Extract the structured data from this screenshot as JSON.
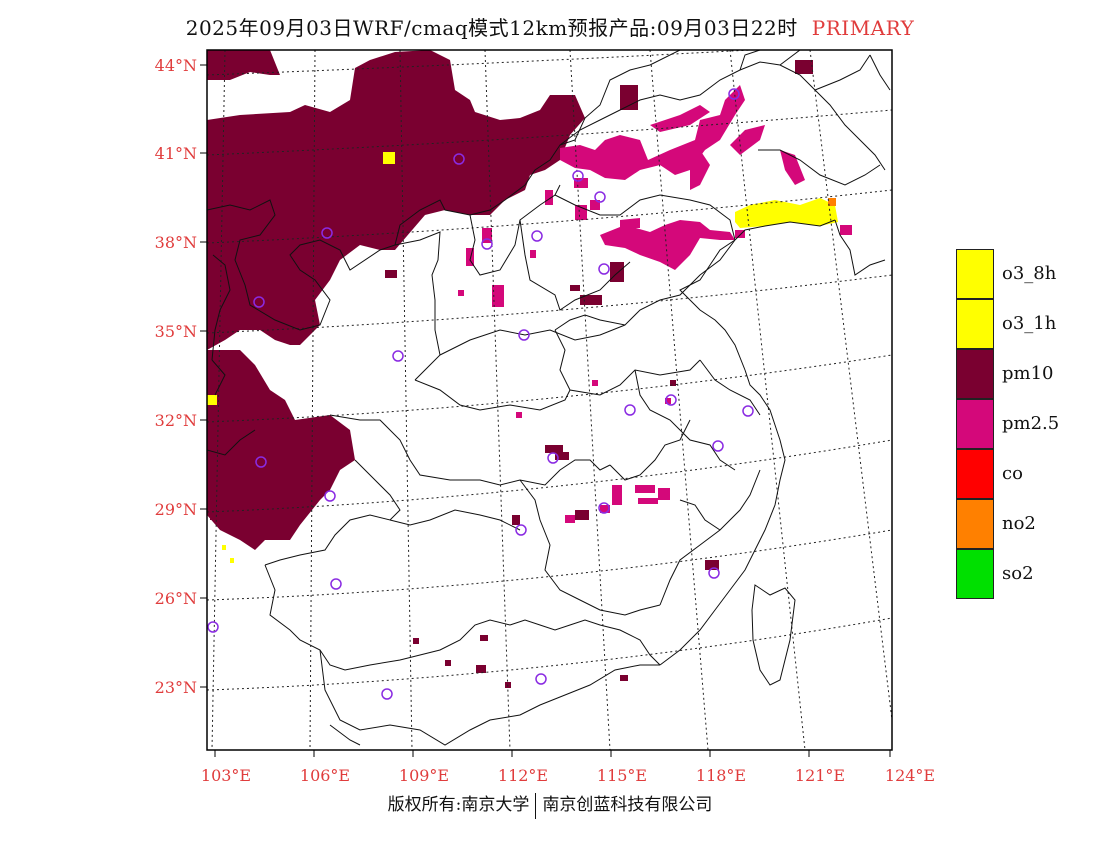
{
  "title": {
    "text": "2025年09月03日WRF/cmaq模式12km预报产品:09月03日22时",
    "tag": "PRIMARY"
  },
  "map": {
    "lat_labels": [
      "44°N",
      "41°N",
      "38°N",
      "35°N",
      "32°N",
      "29°N",
      "26°N",
      "23°N"
    ],
    "lon_labels": [
      "103°E",
      "106°E",
      "109°E",
      "112°E",
      "115°E",
      "118°E",
      "121°E",
      "124°E"
    ]
  },
  "legend": [
    {
      "label": "o3_8h",
      "color": "#ffff00"
    },
    {
      "label": "o3_1h",
      "color": "#ffff00"
    },
    {
      "label": "pm10",
      "color": "#7a0030"
    },
    {
      "label": "pm2.5",
      "color": "#d4087a"
    },
    {
      "label": "co",
      "color": "#ff0000"
    },
    {
      "label": "no2",
      "color": "#ff8000"
    },
    {
      "label": "so2",
      "color": "#00e000"
    }
  ],
  "footer": {
    "left": "版权所有:南京大学",
    "right": "南京创蓝科技有限公司"
  },
  "colors": {
    "pm10": "#7a0030",
    "pm25": "#d4087a",
    "o3": "#ffff00",
    "no2": "#ff8000",
    "axis_label": "#e03c3c",
    "station_marker": "#8a2be2"
  }
}
